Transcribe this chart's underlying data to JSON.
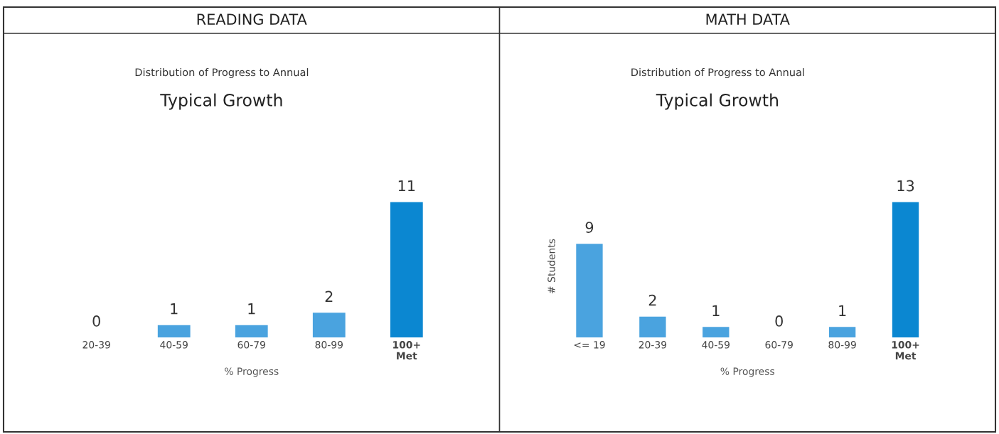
{
  "chart_data": [
    {
      "type": "bar",
      "title": "READING DATA",
      "subtitle": "Distribution of Progress to Annual",
      "annotations": [
        "Typical Growth"
      ],
      "xlabel": "% Progress",
      "categories": [
        "20-39",
        "40-59",
        "60-79",
        "80-99",
        "100+\nMet"
      ],
      "values": [
        0,
        1,
        1,
        2,
        11
      ],
      "colors": [
        "#4aa3df",
        "#4aa3df",
        "#4aa3df",
        "#4aa3df",
        "#0b87d1"
      ],
      "data_labels": true,
      "tick_labels": "x",
      "grid": false,
      "legend": false
    },
    {
      "type": "bar",
      "title": "MATH DATA",
      "subtitle": "Distribution of Progress to Annual",
      "annotations": [
        "Typical Growth"
      ],
      "xlabel": "% Progress",
      "ylabel": "# Students",
      "categories": [
        "<= 19",
        "20-39",
        "40-59",
        "60-79",
        "80-99",
        "100+\nMet"
      ],
      "values": [
        9,
        2,
        1,
        0,
        1,
        13
      ],
      "colors": [
        "#4aa3df",
        "#4aa3df",
        "#4aa3df",
        "#4aa3df",
        "#4aa3df",
        "#0b87d1"
      ],
      "data_labels": true,
      "tick_labels": "x",
      "grid": false,
      "legend": false
    }
  ]
}
